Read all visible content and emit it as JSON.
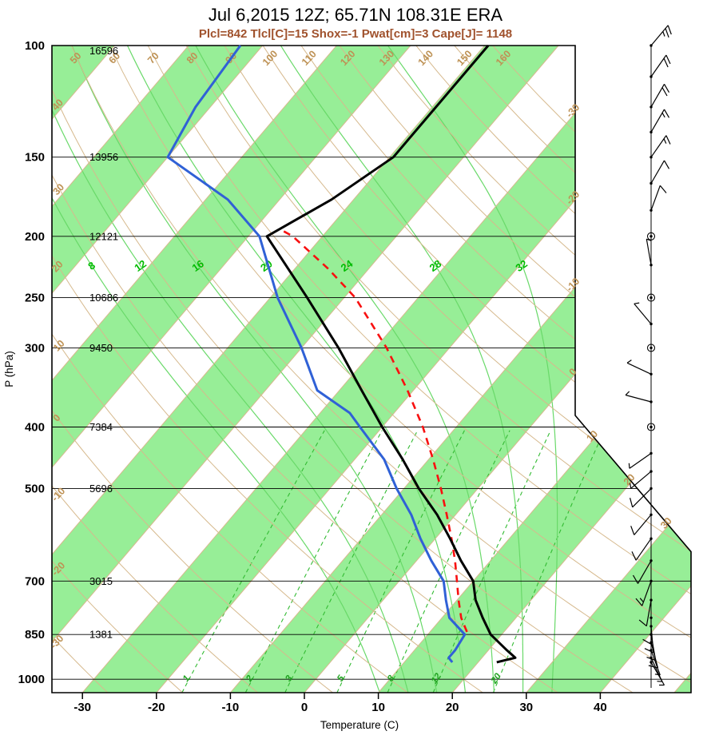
{
  "title": "Jul 6,2015 12Z; 65.71N 108.31E ERA",
  "subtitle": "Plcl=842 Tlcl[C]=15 Shox=-1 Pwat[cm]=3 Cape[J]= 1148",
  "axes": {
    "x_label": "Temperature (C)",
    "y_label": "P (hPa)",
    "x_ticks_c": [
      -30,
      -20,
      -10,
      0,
      10,
      20,
      30,
      40
    ],
    "pressure_ticks_hpa": [
      100,
      150,
      200,
      250,
      300,
      400,
      500,
      700,
      850,
      1000
    ],
    "height_labels_m": {
      "100": "16596",
      "150": "13956",
      "200": "12121",
      "250": "10686",
      "300": "9450",
      "400": "7384",
      "500": "5696",
      "700": "3015",
      "850": "1381"
    }
  },
  "background_labels": {
    "isotherms_right_c": [
      -30,
      -20,
      -10,
      0,
      10,
      20,
      30
    ],
    "dry_adiabats_c": [
      -30,
      -20,
      -10,
      0,
      10,
      20,
      30,
      40,
      50,
      60,
      70,
      80,
      90,
      100,
      110,
      120,
      130,
      140,
      150,
      160
    ],
    "moist_adiabats_c": [
      8,
      12,
      16,
      20,
      24,
      28,
      32
    ],
    "mixing_ratio_gkg": [
      1,
      2,
      3,
      5,
      8,
      12,
      20
    ]
  },
  "colors": {
    "stripe_green": "#97EE97",
    "tan_line": "#D6B98D",
    "tan_label": "#BE9255",
    "moist_line": "#69D969",
    "mixing_line": "#33BB33",
    "green_label": "#00BB00",
    "mixing_label": "#1FA31F",
    "temperature": "#000000",
    "dewpoint": "#3061D6",
    "parcel": "#F81010",
    "subtitle_brown": "#A0522D"
  },
  "chart_data": {
    "type": "skewt_log_p_sounding",
    "station": {
      "date": "Jul 6,2015",
      "hour": "12Z",
      "lat": "65.71N",
      "lon": "108.31E",
      "source": "ERA"
    },
    "indices": {
      "Plcl_hPa": 842,
      "Tlcl_C": 15,
      "Showalter": -1,
      "Pwat_cm": 3,
      "Cape_J": 1148
    },
    "pressure_axis_range_hpa": [
      100,
      1050
    ],
    "temperature_axis_range_c": [
      -35,
      45
    ],
    "temperature_profile_p_t": [
      [
        940,
        22.5
      ],
      [
        925,
        24.5
      ],
      [
        900,
        22.5
      ],
      [
        850,
        18.5
      ],
      [
        800,
        15.5
      ],
      [
        750,
        12.5
      ],
      [
        700,
        10
      ],
      [
        650,
        6
      ],
      [
        600,
        2
      ],
      [
        550,
        -2.5
      ],
      [
        500,
        -8
      ],
      [
        450,
        -13.5
      ],
      [
        400,
        -20
      ],
      [
        350,
        -27
      ],
      [
        300,
        -35
      ],
      [
        250,
        -45
      ],
      [
        200,
        -57.5
      ],
      [
        175,
        -53
      ],
      [
        150,
        -49.5
      ],
      [
        125,
        -49.5
      ],
      [
        100,
        -49.5
      ]
    ],
    "dewpoint_profile_p_t": [
      [
        940,
        16.5
      ],
      [
        925,
        15.5
      ],
      [
        900,
        15.5
      ],
      [
        850,
        15
      ],
      [
        800,
        11
      ],
      [
        750,
        8.5
      ],
      [
        700,
        6
      ],
      [
        650,
        2
      ],
      [
        600,
        -2
      ],
      [
        550,
        -6
      ],
      [
        500,
        -11
      ],
      [
        450,
        -16
      ],
      [
        400,
        -23
      ],
      [
        380,
        -26
      ],
      [
        350,
        -33
      ],
      [
        300,
        -40
      ],
      [
        250,
        -49
      ],
      [
        200,
        -58.5
      ],
      [
        175,
        -67
      ],
      [
        150,
        -80
      ],
      [
        125,
        -82
      ],
      [
        100,
        -83
      ]
    ],
    "parcel_profile_p_t": [
      [
        842,
        15
      ],
      [
        800,
        12.6
      ],
      [
        750,
        10.2
      ],
      [
        700,
        7.8
      ],
      [
        650,
        5.2
      ],
      [
        600,
        2.2
      ],
      [
        550,
        -1.2
      ],
      [
        500,
        -5
      ],
      [
        450,
        -9.4
      ],
      [
        400,
        -14.5
      ],
      [
        350,
        -20.8
      ],
      [
        300,
        -28.5
      ],
      [
        250,
        -38.5
      ],
      [
        225,
        -45.5
      ],
      [
        200,
        -54
      ],
      [
        196,
        -56
      ]
    ],
    "wind_barbs": [
      {
        "p": 100,
        "kt": 25,
        "dir": 40
      },
      {
        "p": 112,
        "kt": 20,
        "dir": 35
      },
      {
        "p": 125,
        "kt": 20,
        "dir": 30
      },
      {
        "p": 137,
        "kt": 15,
        "dir": 30
      },
      {
        "p": 150,
        "kt": 15,
        "dir": 35
      },
      {
        "p": 165,
        "kt": 10,
        "dir": 30
      },
      {
        "p": 182,
        "kt": 10,
        "dir": 20
      },
      {
        "p": 200,
        "kt": 2,
        "dir": 0
      },
      {
        "p": 222,
        "kt": 5,
        "dir": 350
      },
      {
        "p": 250,
        "kt": 2,
        "dir": 0
      },
      {
        "p": 275,
        "kt": 5,
        "dir": 320
      },
      {
        "p": 300,
        "kt": 2,
        "dir": 0
      },
      {
        "p": 330,
        "kt": 5,
        "dir": 295
      },
      {
        "p": 365,
        "kt": 7,
        "dir": 285
      },
      {
        "p": 400,
        "kt": 2,
        "dir": 0
      },
      {
        "p": 440,
        "kt": 5,
        "dir": 235
      },
      {
        "p": 470,
        "kt": 7,
        "dir": 230
      },
      {
        "p": 500,
        "kt": 10,
        "dir": 225
      },
      {
        "p": 550,
        "kt": 10,
        "dir": 220
      },
      {
        "p": 600,
        "kt": 12,
        "dir": 215
      },
      {
        "p": 650,
        "kt": 12,
        "dir": 210
      },
      {
        "p": 700,
        "kt": 13,
        "dir": 200
      },
      {
        "p": 750,
        "kt": 12,
        "dir": 190
      },
      {
        "p": 800,
        "kt": 10,
        "dir": 180
      },
      {
        "p": 825,
        "kt": 10,
        "dir": 175
      },
      {
        "p": 850,
        "kt": 8,
        "dir": 170
      },
      {
        "p": 875,
        "kt": 8,
        "dir": 165
      },
      {
        "p": 900,
        "kt": 7,
        "dir": 160
      },
      {
        "p": 925,
        "kt": 5,
        "dir": 155
      },
      {
        "p": 940,
        "kt": 5,
        "dir": 150
      }
    ]
  }
}
